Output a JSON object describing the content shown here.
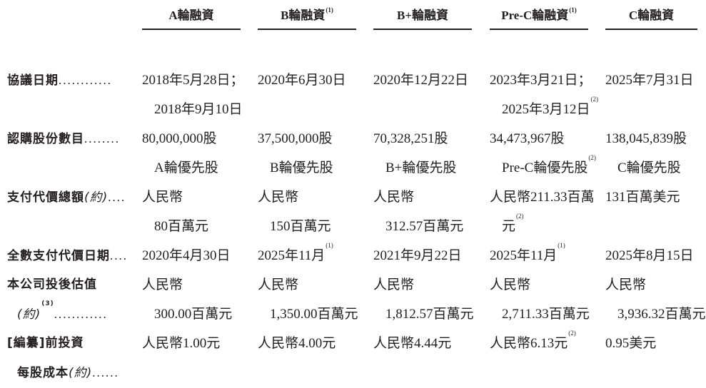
{
  "headers": [
    {
      "text": "A輪融資",
      "sup": ""
    },
    {
      "text": "B輪融資",
      "sup": "(1)"
    },
    {
      "text": "B+輪融資",
      "sup": ""
    },
    {
      "text": "Pre-C輪融資",
      "sup": "(1)"
    },
    {
      "text": "C輪融資",
      "sup": ""
    }
  ],
  "rows": [
    {
      "label": [
        {
          "text": "協議日期",
          "italic": "",
          "sup": "",
          "dots": "............"
        }
      ],
      "cells": [
        [
          {
            "text": "2018年5月28日；"
          },
          {
            "text": "2018年9月10日"
          }
        ],
        [
          {
            "text": "2020年6月30日"
          }
        ],
        [
          {
            "text": "2020年12月22日"
          }
        ],
        [
          {
            "text": "2023年3月21日；"
          },
          {
            "text": "2025年3月12日",
            "sup": "(2)"
          }
        ],
        [
          {
            "text": "2025年7月31日"
          }
        ]
      ]
    },
    {
      "label": [
        {
          "text": "認購股份數目",
          "italic": "",
          "sup": "",
          "dots": "........"
        }
      ],
      "cells": [
        [
          {
            "text": "80,000,000股"
          },
          {
            "text": "A輪優先股"
          }
        ],
        [
          {
            "text": "37,500,000股"
          },
          {
            "text": "B輪優先股"
          }
        ],
        [
          {
            "text": "70,328,251股"
          },
          {
            "text": "B+輪優先股"
          }
        ],
        [
          {
            "text": "34,473,967股"
          },
          {
            "text": "Pre-C輪優先股",
            "sup": "(2)"
          }
        ],
        [
          {
            "text": "138,045,839股"
          },
          {
            "text": "C輪優先股"
          }
        ]
      ]
    },
    {
      "label": [
        {
          "text": "支付代價總額",
          "italic": "(約)",
          "sup": "",
          "dots": "...."
        }
      ],
      "cells": [
        [
          {
            "text": "人民幣"
          },
          {
            "text": "80百萬元"
          }
        ],
        [
          {
            "text": "人民幣"
          },
          {
            "text": "150百萬元"
          }
        ],
        [
          {
            "text": "人民幣"
          },
          {
            "text": "312.57百萬元"
          }
        ],
        [
          {
            "text": "人民幣211.33百萬"
          },
          {
            "text": "元",
            "sup": "(2)"
          }
        ],
        [
          {
            "text": "131百萬美元"
          }
        ]
      ]
    },
    {
      "label": [
        {
          "text": "全數支付代價日期",
          "italic": "",
          "sup": "",
          "dots": "...."
        }
      ],
      "cells": [
        [
          {
            "text": "2020年4月30日"
          }
        ],
        [
          {
            "text": "2025年11月",
            "sup": "(1)"
          }
        ],
        [
          {
            "text": "2021年9月22日"
          }
        ],
        [
          {
            "text": "2025年11月",
            "sup": "(1)"
          }
        ],
        [
          {
            "text": "2025年8月15日"
          }
        ]
      ]
    },
    {
      "label": [
        {
          "text": "本公司投後估值",
          "italic": "",
          "sup": "",
          "dots": ""
        },
        {
          "text": "",
          "italic": "(約)",
          "sup": "(3)",
          "dots": "............"
        }
      ],
      "cells": [
        [
          {
            "text": "人民幣"
          },
          {
            "text": "300.00百萬元"
          }
        ],
        [
          {
            "text": "人民幣"
          },
          {
            "text": "1,350.00百萬元"
          }
        ],
        [
          {
            "text": "人民幣"
          },
          {
            "text": "1,812.57百萬元"
          }
        ],
        [
          {
            "text": "人民幣"
          },
          {
            "text": "2,711.33百萬元"
          }
        ],
        [
          {
            "text": "人民幣"
          },
          {
            "text": "3,936.32百萬元"
          }
        ]
      ]
    },
    {
      "label": [
        {
          "text": "[編纂]前投資",
          "italic": "",
          "sup": "",
          "dots": ""
        },
        {
          "text": "每股成本",
          "italic": "(約)",
          "sup": "",
          "dots": "......"
        }
      ],
      "cells": [
        [
          {
            "text": "人民幣1.00元"
          }
        ],
        [
          {
            "text": "人民幣4.00元"
          }
        ],
        [
          {
            "text": "人民幣4.44元"
          }
        ],
        [
          {
            "text": "人民幣6.13元",
            "sup": "(2)"
          }
        ],
        [
          {
            "text": "0.95美元"
          }
        ]
      ]
    }
  ]
}
